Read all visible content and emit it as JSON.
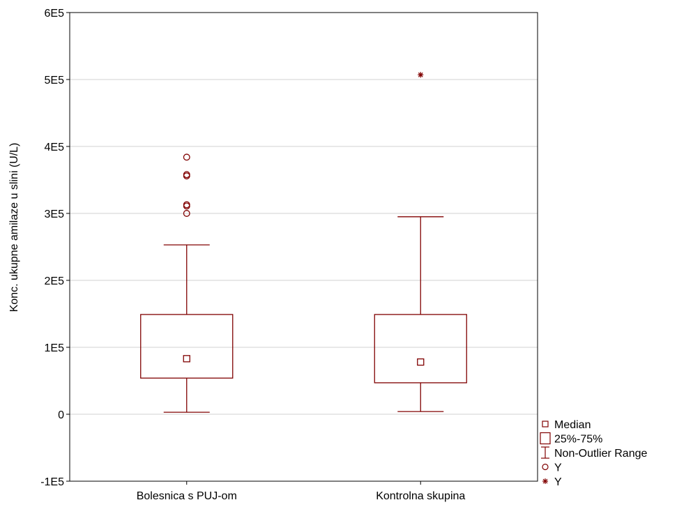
{
  "chart_data": {
    "type": "boxplot",
    "title": "",
    "xlabel": "",
    "ylabel": "Konc. ukupne amilaze u slini (U/L)",
    "ylim": [
      -100000,
      600000
    ],
    "y_ticks": [
      -100000,
      0,
      100000,
      200000,
      300000,
      400000,
      500000,
      600000
    ],
    "y_tick_labels": [
      "-1E5",
      "0",
      "1E5",
      "2E5",
      "3E5",
      "4E5",
      "5E5",
      "6E5"
    ],
    "grid": true,
    "legend_position": "bottom-right",
    "categories": [
      "Bolesnica s PUJ-om",
      "Kontrolna skupina"
    ],
    "groups": [
      {
        "name": "Bolesnica s PUJ-om",
        "median": 83000,
        "q1": 54000,
        "q3": 149000,
        "whisker_low": 3000,
        "whisker_high": 253000,
        "outliers": [
          384000,
          358000,
          356000,
          313000,
          311000,
          300000
        ],
        "extremes": []
      },
      {
        "name": "Kontrolna skupina",
        "median": 78000,
        "q1": 47000,
        "q3": 149000,
        "whisker_low": 4000,
        "whisker_high": 295000,
        "outliers": [],
        "extremes": [
          507000
        ]
      }
    ],
    "legend": [
      {
        "symbol": "median-square",
        "label": "Median"
      },
      {
        "symbol": "box",
        "label": "25%-75%"
      },
      {
        "symbol": "whisker",
        "label": "Non-Outlier Range"
      },
      {
        "symbol": "circle",
        "label": "Y"
      },
      {
        "symbol": "asterisk",
        "label": "Y"
      }
    ],
    "colors": {
      "series": "#800000",
      "grid": "#d0d0d0",
      "axis": "#000000"
    }
  }
}
